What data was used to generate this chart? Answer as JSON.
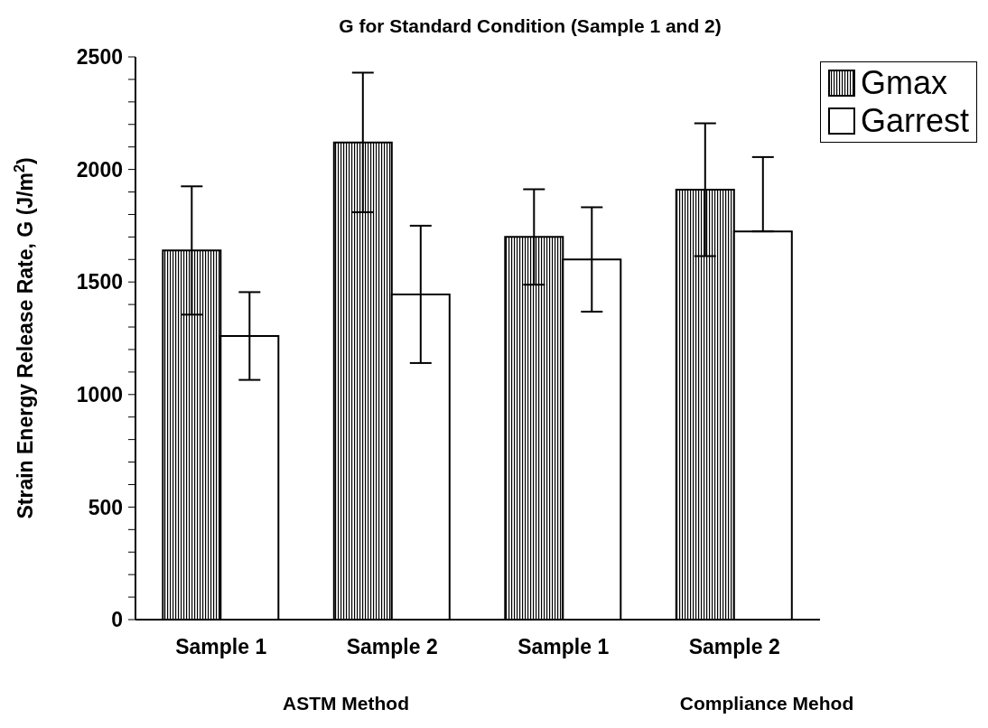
{
  "chart_data": {
    "type": "bar",
    "title": "G for Standard Condition (Sample 1 and 2)",
    "ylabel": "Strain Energy Release Rate, G (J/m$^{2}$)",
    "categories": [
      "Sample 1",
      "Sample 2",
      "Sample 1",
      "Sample 2"
    ],
    "annotations": [
      "ASTM Method",
      "Compliance Mehod"
    ],
    "series": [
      {
        "name": "Gmax",
        "color": "#000000",
        "values": [
          1640,
          2120,
          1700,
          1910
        ],
        "errors": [
          285,
          310,
          212,
          295
        ]
      },
      {
        "name": "Garrest",
        "color": "#ffffff",
        "values": [
          1260,
          1445,
          1600,
          1725
        ],
        "errors": [
          195,
          305,
          232,
          [
            1725,
            2055
          ]
        ]
      }
    ],
    "ylim": [
      0,
      2500
    ],
    "yticks": [
      0,
      {
        "value": 100,
        "label": null
      },
      {
        "value": 200,
        "label": null
      },
      {
        "value": 300,
        "label": null
      },
      {
        "value": 400,
        "label": null
      },
      500,
      {
        "value": 600,
        "label": null
      },
      {
        "value": 700,
        "label": null
      },
      {
        "value": 800,
        "label": null
      },
      {
        "value": 900,
        "label": null
      },
      1000,
      {
        "value": 1100,
        "label": null
      },
      {
        "value": 1200,
        "label": null
      },
      {
        "value": 1300,
        "label": null
      },
      {
        "value": 1400,
        "label": null
      },
      1500,
      {
        "value": 1600,
        "label": null
      },
      {
        "value": 1700,
        "label": null
      },
      {
        "value": 1800,
        "label": null
      },
      {
        "value": 1900,
        "label": null
      },
      2000,
      {
        "value": 2100,
        "label": null
      },
      {
        "value": 2200,
        "label": null
      },
      {
        "value": 2300,
        "label": null
      },
      {
        "value": 2400,
        "label": null
      },
      2500
    ],
    "legend": "top right"
  }
}
